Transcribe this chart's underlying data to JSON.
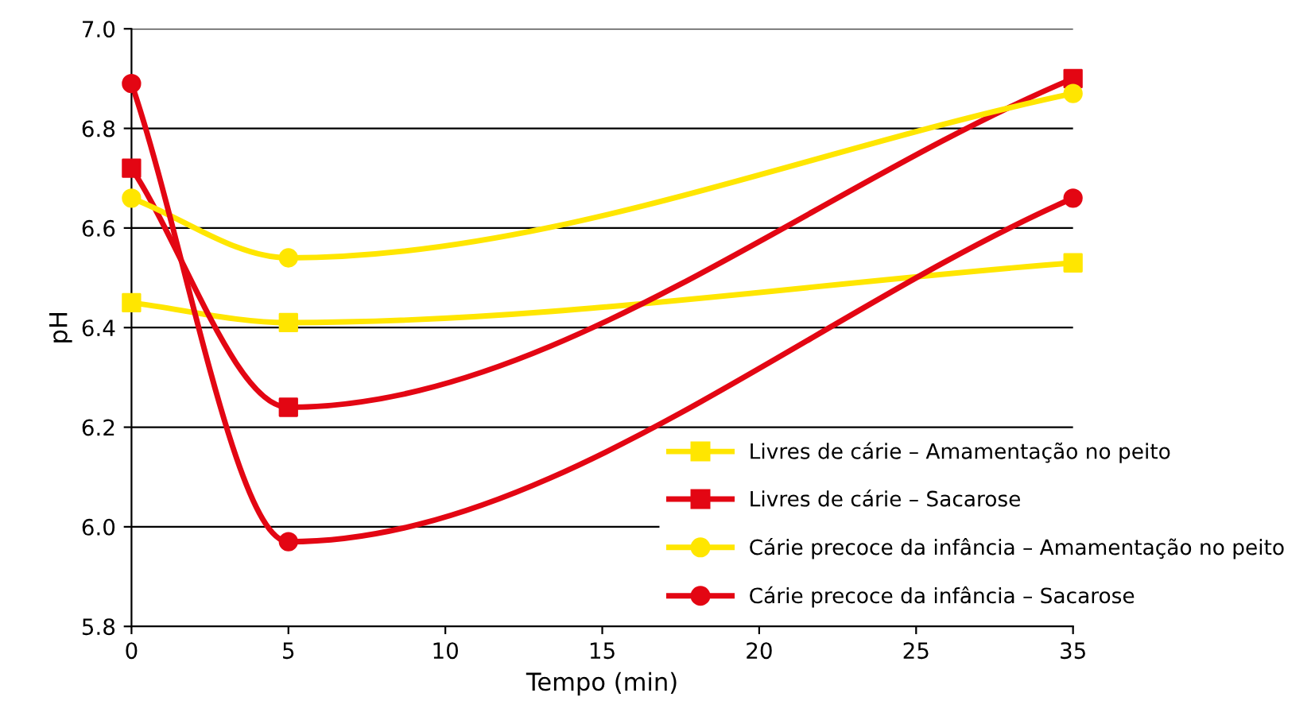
{
  "chart_data": {
    "type": "line",
    "xlabel": "Tempo (min)",
    "ylabel": "pH",
    "categories": [
      "0",
      "5",
      "10",
      "15",
      "20",
      "25",
      "35"
    ],
    "series": [
      {
        "name": "Livres de cárie – Amamentação no peito",
        "color": "#ffe600",
        "marker": "square",
        "values": [
          6.45,
          6.41,
          null,
          null,
          null,
          null,
          6.53
        ]
      },
      {
        "name": "Livres de cárie – Sacarose",
        "color": "#e30613",
        "marker": "square",
        "values": [
          6.72,
          6.24,
          null,
          null,
          null,
          null,
          6.9
        ]
      },
      {
        "name": "Cárie precoce da infância – Amamentação no peito",
        "color": "#ffe600",
        "marker": "circle",
        "values": [
          6.66,
          6.54,
          null,
          null,
          null,
          null,
          6.87
        ]
      },
      {
        "name": "Cárie precoce da infância – Sacarose",
        "color": "#e30613",
        "marker": "circle",
        "values": [
          6.89,
          5.97,
          null,
          null,
          null,
          null,
          6.66
        ]
      }
    ],
    "ylim": [
      5.8,
      7.0
    ],
    "yticks": [
      {
        "value": 5.8,
        "label": "5.8"
      },
      {
        "value": 6.0,
        "label": "6.0"
      },
      {
        "value": 6.2,
        "label": "6.2"
      },
      {
        "value": 6.4,
        "label": "6.4"
      },
      {
        "value": 6.6,
        "label": "6.6"
      },
      {
        "value": 6.8,
        "label": "6.8"
      },
      {
        "value": 7.0,
        "label": "7.0"
      }
    ],
    "grid": "y",
    "legend": "bottom right",
    "line_style": "solid"
  }
}
